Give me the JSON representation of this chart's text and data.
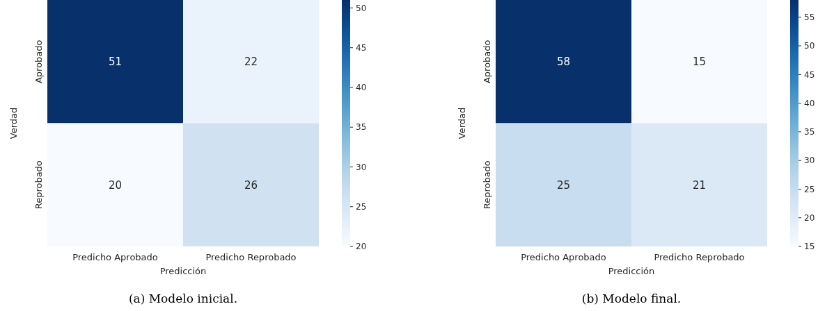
{
  "chart_data": [
    {
      "type": "heatmap",
      "title": "(a) Modelo inicial.",
      "xlabel": "Predicción",
      "ylabel": "Verdad",
      "categories": [
        "Predicho Aprobado",
        "Predicho Reprobado"
      ],
      "y_categories": [
        "Aprobado",
        "Reprobado"
      ],
      "cells": [
        [
          51,
          22
        ],
        [
          20,
          26
        ]
      ],
      "data_labels": true,
      "clim": [
        20,
        51
      ],
      "cticks": [
        20,
        25,
        30,
        35,
        40,
        45,
        50
      ]
    },
    {
      "type": "heatmap",
      "title": "(b) Modelo final.",
      "xlabel": "Predicción",
      "ylabel": "Verdad",
      "categories": [
        "Predicho Aprobado",
        "Predicho Reprobado"
      ],
      "y_categories": [
        "Aprobado",
        "Reprobado"
      ],
      "cells": [
        [
          58,
          15
        ],
        [
          25,
          21
        ]
      ],
      "data_labels": true,
      "clim": [
        15,
        58
      ],
      "cticks": [
        15,
        20,
        25,
        30,
        35,
        40,
        45,
        50,
        55
      ]
    }
  ]
}
